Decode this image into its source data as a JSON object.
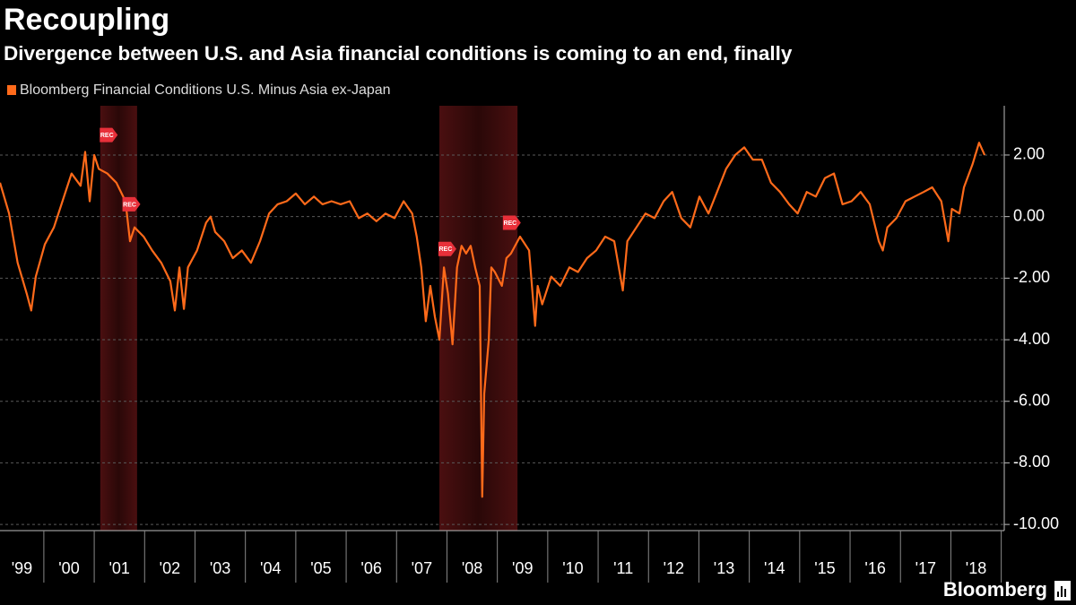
{
  "chart_data": {
    "type": "line",
    "title": "Recoupling",
    "subtitle": "Divergence between U.S. and Asia financial conditions is coming to an end, finally",
    "source": "Bloomberg",
    "grid": true,
    "xlim": [
      1999.13,
      2019.06
    ],
    "ylim": [
      -10.2,
      3.6
    ],
    "yticks": [
      {
        "value": 2,
        "label": "2.00"
      },
      {
        "value": 0,
        "label": "0.00"
      },
      {
        "value": -2,
        "label": "-2.00"
      },
      {
        "value": -4,
        "label": "-4.00"
      },
      {
        "value": -6,
        "label": "-6.00"
      },
      {
        "value": -8,
        "label": "-8.00"
      },
      {
        "value": -10,
        "label": "-10.00"
      }
    ],
    "xticks": [
      {
        "value": 1999,
        "label": "'99"
      },
      {
        "value": 2000,
        "label": "'00"
      },
      {
        "value": 2001,
        "label": "'01"
      },
      {
        "value": 2002,
        "label": "'02"
      },
      {
        "value": 2003,
        "label": "'03"
      },
      {
        "value": 2004,
        "label": "'04"
      },
      {
        "value": 2005,
        "label": "'05"
      },
      {
        "value": 2006,
        "label": "'06"
      },
      {
        "value": 2007,
        "label": "'07"
      },
      {
        "value": 2008,
        "label": "'08"
      },
      {
        "value": 2009,
        "label": "'09"
      },
      {
        "value": 2010,
        "label": "'10"
      },
      {
        "value": 2011,
        "label": "'11"
      },
      {
        "value": 2012,
        "label": "'12"
      },
      {
        "value": 2013,
        "label": "'13"
      },
      {
        "value": 2014,
        "label": "'14"
      },
      {
        "value": 2015,
        "label": "'15"
      },
      {
        "value": 2016,
        "label": "'16"
      },
      {
        "value": 2017,
        "label": "'17"
      },
      {
        "value": 2018,
        "label": "'18"
      }
    ],
    "recessions": [
      {
        "start": 2001.12,
        "end": 2001.85
      },
      {
        "start": 2007.85,
        "end": 2009.4
      }
    ],
    "annotations": [
      {
        "label": "REC",
        "x": 2001.27,
        "y": 2.65
      },
      {
        "label": "REC",
        "x": 2001.72,
        "y": 0.4
      },
      {
        "label": "REC",
        "x": 2007.99,
        "y": -1.05
      },
      {
        "label": "REC",
        "x": 2009.27,
        "y": -0.2
      }
    ],
    "x": [
      1999.13,
      1999.31,
      1999.48,
      1999.66,
      1999.75,
      1999.84,
      2000.02,
      2000.2,
      2000.37,
      2000.55,
      2000.73,
      2000.82,
      2000.91,
      2001.0,
      2001.09,
      2001.26,
      2001.44,
      2001.62,
      2001.71,
      2001.8,
      2001.98,
      2002.15,
      2002.33,
      2002.51,
      2002.6,
      2002.69,
      2002.78,
      2002.86,
      2003.04,
      2003.22,
      2003.31,
      2003.4,
      2003.58,
      2003.75,
      2003.93,
      2004.11,
      2004.29,
      2004.47,
      2004.64,
      2004.82,
      2005.0,
      2005.18,
      2005.36,
      2005.53,
      2005.71,
      2005.89,
      2006.07,
      2006.25,
      2006.42,
      2006.6,
      2006.78,
      2006.96,
      2007.14,
      2007.31,
      2007.4,
      2007.49,
      2007.58,
      2007.67,
      2007.76,
      2007.85,
      2007.94,
      2008.02,
      2008.11,
      2008.2,
      2008.29,
      2008.38,
      2008.47,
      2008.56,
      2008.65,
      2008.7,
      2008.74,
      2008.83,
      2008.88,
      2008.95,
      2009.09,
      2009.18,
      2009.27,
      2009.45,
      2009.63,
      2009.75,
      2009.8,
      2009.89,
      2010.07,
      2010.25,
      2010.43,
      2010.6,
      2010.78,
      2010.96,
      2011.14,
      2011.32,
      2011.49,
      2011.58,
      2011.76,
      2011.94,
      2012.12,
      2012.3,
      2012.47,
      2012.65,
      2012.83,
      2013.01,
      2013.19,
      2013.36,
      2013.54,
      2013.72,
      2013.9,
      2014.07,
      2014.25,
      2014.43,
      2014.61,
      2014.79,
      2014.96,
      2015.14,
      2015.32,
      2015.5,
      2015.68,
      2015.85,
      2016.03,
      2016.21,
      2016.39,
      2016.57,
      2016.65,
      2016.74,
      2016.92,
      2017.1,
      2017.28,
      2017.46,
      2017.63,
      2017.81,
      2017.95,
      2018.02,
      2018.17,
      2018.26,
      2018.43,
      2018.56,
      2018.67
    ],
    "series": [
      {
        "name": "Bloomberg Financial Conditions U.S. Minus Asia ex-Japan",
        "color": "#ff6a1a",
        "values": [
          1.1,
          0.1,
          -1.5,
          -2.5,
          -3.05,
          -1.95,
          -0.9,
          -0.35,
          0.5,
          1.4,
          1.0,
          2.1,
          0.5,
          2.0,
          1.55,
          1.4,
          1.1,
          0.5,
          -0.8,
          -0.35,
          -0.65,
          -1.1,
          -1.5,
          -2.1,
          -3.05,
          -1.65,
          -3.0,
          -1.65,
          -1.1,
          -0.2,
          0,
          -0.5,
          -0.8,
          -1.35,
          -1.1,
          -1.5,
          -0.8,
          0.1,
          0.4,
          0.5,
          0.75,
          0.4,
          0.65,
          0.4,
          0.5,
          0.4,
          0.5,
          -0.05,
          0.1,
          -0.15,
          0.1,
          -0.05,
          0.5,
          0.1,
          -0.65,
          -1.65,
          -3.4,
          -2.25,
          -3.25,
          -4.0,
          -1.65,
          -2.5,
          -4.15,
          -1.65,
          -0.95,
          -1.2,
          -0.95,
          -1.65,
          -2.25,
          -9.1,
          -5.75,
          -4.0,
          -1.65,
          -1.8,
          -2.25,
          -1.35,
          -1.2,
          -0.65,
          -1.1,
          -3.55,
          -2.25,
          -2.85,
          -1.95,
          -2.25,
          -1.65,
          -1.8,
          -1.35,
          -1.1,
          -0.65,
          -0.8,
          -2.4,
          -0.8,
          -0.35,
          0.1,
          -0.05,
          0.5,
          0.8,
          -0.05,
          -0.35,
          0.65,
          0.1,
          0.8,
          1.55,
          2.0,
          2.25,
          1.85,
          1.85,
          1.1,
          0.8,
          0.4,
          0.1,
          0.8,
          0.65,
          1.25,
          1.4,
          0.4,
          0.5,
          0.8,
          0.4,
          -0.8,
          -1.1,
          -0.35,
          -0.05,
          0.5,
          0.65,
          0.8,
          0.95,
          0.5,
          -0.8,
          0.25,
          0.1,
          0.95,
          1.7,
          2.4,
          2.0
        ]
      }
    ]
  }
}
